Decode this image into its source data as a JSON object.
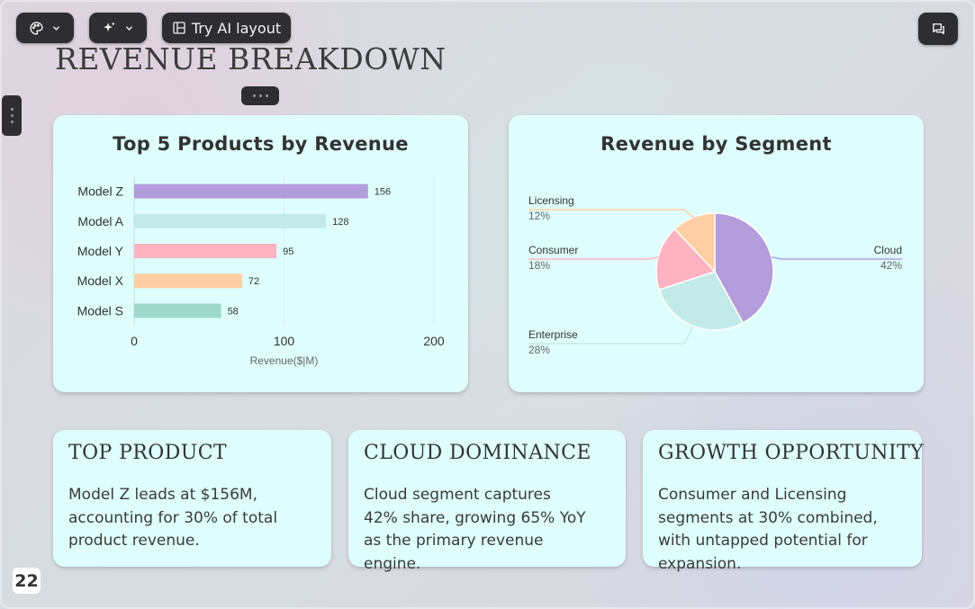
{
  "toolbar": {
    "theme_button_icon": "palette-icon",
    "ai_button_icon": "sparkles-icon",
    "layout_button_label": "Try AI layout",
    "layout_button_icon": "layout-icon",
    "comments_button_icon": "comments-icon"
  },
  "slide": {
    "title": "REVENUE BREAKDOWN",
    "page_number": "22"
  },
  "colors": {
    "card_bg": "#defffd",
    "purple": "#b39ddb",
    "teal": "#c2eae9",
    "pink": "#ffb3c1",
    "peach": "#ffcfa3",
    "green": "#9fd9cb"
  },
  "chart_data": [
    {
      "type": "bar",
      "orientation": "horizontal",
      "title": "Top 5 Products by Revenue",
      "xlabel": "Revenue($|M)",
      "categories": [
        "Model Z",
        "Model A",
        "Model Y",
        "Model X",
        "Model S"
      ],
      "values": [
        156,
        128,
        95,
        72,
        58
      ],
      "colors": [
        "#b39ddb",
        "#c2eae9",
        "#ffb3c1",
        "#ffcfa3",
        "#9fd9cb"
      ],
      "xlim": [
        0,
        200
      ],
      "xticks": [
        "0",
        "100",
        "200"
      ],
      "grid": true
    },
    {
      "type": "pie",
      "title": "Revenue by Segment",
      "slices": [
        {
          "label": "Cloud",
          "value": 42,
          "display": "42%",
          "color": "#b39ddb"
        },
        {
          "label": "Enterprise",
          "value": 28,
          "display": "28%",
          "color": "#c2eae9"
        },
        {
          "label": "Consumer",
          "value": 18,
          "display": "18%",
          "color": "#ffb3c1"
        },
        {
          "label": "Licensing",
          "value": 12,
          "display": "12%",
          "color": "#ffcfa3"
        }
      ]
    }
  ],
  "cards": [
    {
      "title": "TOP PRODUCT",
      "body": "Model Z leads at $156M, accounting for 30% of total product revenue."
    },
    {
      "title": "CLOUD DOMINANCE",
      "body": "Cloud segment captures 42% share, growing 65% YoY as the primary revenue engine."
    },
    {
      "title": "GROWTH OPPORTUNITY",
      "body": "Consumer and Licensing segments at 30% combined, with untapped potential for expansion."
    }
  ]
}
